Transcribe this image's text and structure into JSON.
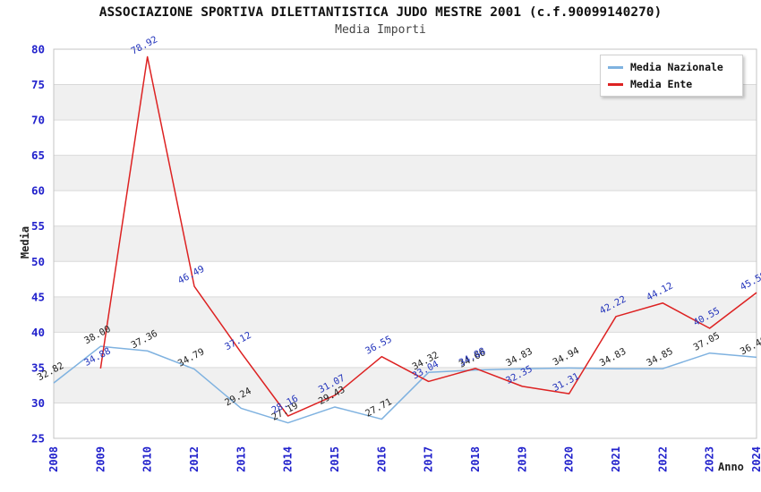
{
  "title": "ASSOCIAZIONE SPORTIVA DILETTANTISTICA JUDO MESTRE 2001 (c.f.90099140270)",
  "subtitle": "Media Importi",
  "colors": {
    "background": "#ffffff",
    "band": "#f0f0f0",
    "grid": "#d9d9d9",
    "plot_border": "#c4c4c4",
    "tick_label": "#2222cc",
    "title": "#111111",
    "subtitle": "#444444",
    "axis_title": "#222222",
    "nazionale_line": "#7fb2e0",
    "ente_line": "#dd2222",
    "nazionale_label": "#222222",
    "ente_label": "#2233bb"
  },
  "legend": {
    "items": [
      {
        "label": "Media Nazionale",
        "color": "#7fb2e0"
      },
      {
        "label": "Media Ente",
        "color": "#dd2222"
      }
    ]
  },
  "chart_data": {
    "type": "line",
    "title": "ASSOCIAZIONE SPORTIVA DILETTANTISTICA JUDO MESTRE 2001 (c.f.90099140270)",
    "subtitle": "Media Importi",
    "categories": [
      "2008",
      "2009",
      "2010",
      "2012",
      "2013",
      "2014",
      "2015",
      "2016",
      "2017",
      "2018",
      "2019",
      "2020",
      "2021",
      "2022",
      "2023",
      "2024"
    ],
    "series": [
      {
        "name": "Media Nazionale",
        "color": "#7fb2e0",
        "label_color": "#222222",
        "values": [
          32.82,
          38.0,
          37.36,
          34.79,
          29.24,
          27.19,
          29.43,
          27.71,
          34.32,
          34.66,
          34.83,
          34.94,
          34.83,
          34.85,
          37.05,
          36.46
        ]
      },
      {
        "name": "Media Ente",
        "color": "#dd2222",
        "label_color": "#2233bb",
        "values": [
          null,
          34.88,
          78.92,
          46.49,
          37.12,
          28.16,
          31.07,
          36.55,
          33.04,
          34.88,
          32.35,
          31.31,
          42.22,
          44.12,
          40.55,
          45.59
        ]
      }
    ],
    "xlabel": "Anno",
    "ylabel": "Media",
    "ylim": [
      25,
      80
    ],
    "ytick_step": 5,
    "yticks": [
      25,
      30,
      35,
      40,
      45,
      50,
      55,
      60,
      65,
      70,
      75,
      80
    ],
    "grid": true,
    "bands_alternating": true,
    "legend_position": "top-right"
  }
}
